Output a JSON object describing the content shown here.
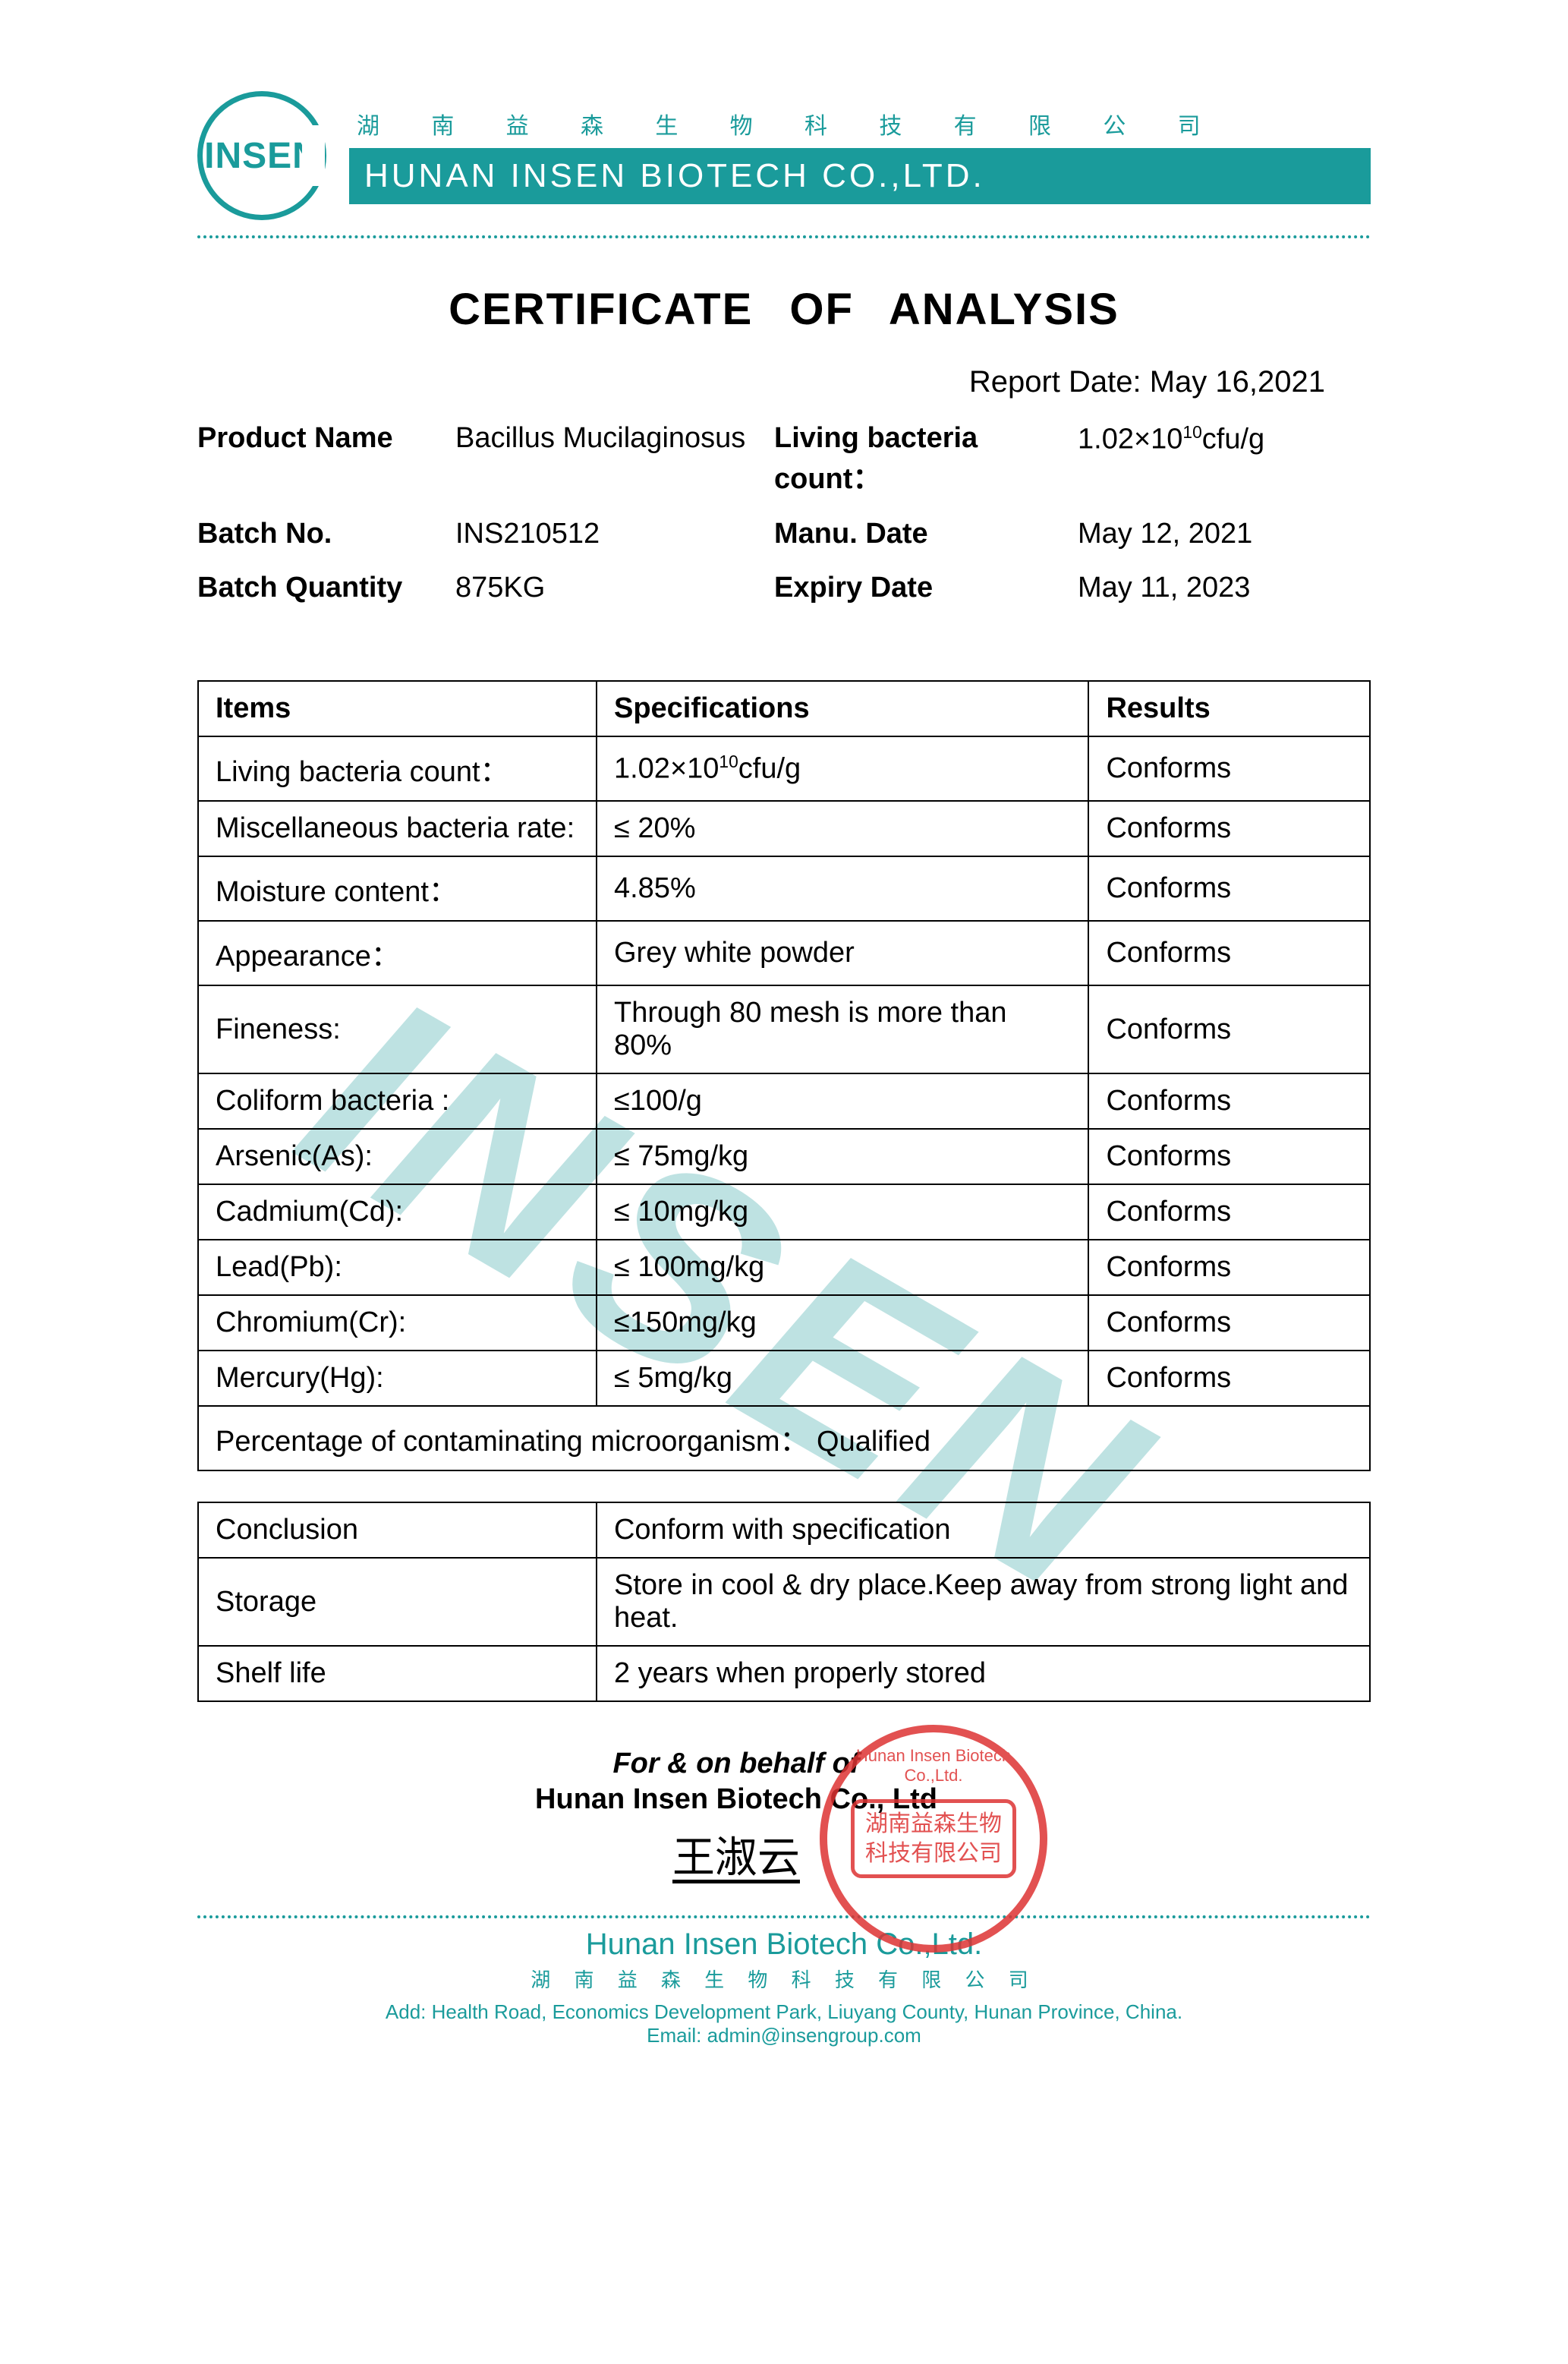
{
  "brand": {
    "logo_text": "INSEN",
    "cn_top": "湖 南 益 森 生 物 科 技 有 限 公 司",
    "company_bar": "HUNAN INSEN BIOTECH CO.,LTD.",
    "accent_color": "#1a9b9b"
  },
  "title": "CERTIFICATE   OF   ANALYSIS",
  "report_date_label": "Report Date:",
  "report_date": "May 16,2021",
  "info": {
    "product_name_label": "Product Name",
    "product_name": "Bacillus Mucilaginosus",
    "living_label": "Living bacteria count：",
    "living_value_prefix": "1.02×10",
    "living_value_exp": "10",
    "living_value_suffix": "cfu/g",
    "batch_no_label": "Batch No.",
    "batch_no": "INS210512",
    "manu_date_label": "Manu. Date",
    "manu_date": "May 12, 2021",
    "batch_qty_label": "Batch Quantity",
    "batch_qty": "875KG",
    "expiry_label": "Expiry Date",
    "expiry": "May 11, 2023"
  },
  "table": {
    "headers": {
      "items": "Items",
      "spec": "Specifications",
      "results": "Results"
    },
    "rows": [
      {
        "item": "Living bacteria count：",
        "spec_prefix": "1.02×10",
        "spec_exp": "10",
        "spec_suffix": "cfu/g",
        "result": "Conforms"
      },
      {
        "item": "Miscellaneous bacteria rate:",
        "spec": "≤ 20%",
        "result": "Conforms"
      },
      {
        "item": "Moisture content：",
        "spec": "4.85%",
        "result": "Conforms"
      },
      {
        "item": "Appearance：",
        "spec": "Grey white powder",
        "result": "Conforms"
      },
      {
        "item": "Fineness:",
        "spec": "Through 80 mesh is more than 80%",
        "result": "Conforms"
      },
      {
        "item": "Coliform bacteria :",
        "spec": "≤100/g",
        "result": "Conforms"
      },
      {
        "item": "Arsenic(As):",
        "spec": "≤ 75mg/kg",
        "result": "Conforms"
      },
      {
        "item": "Cadmium(Cd):",
        "spec": "≤ 10mg/kg",
        "result": "Conforms"
      },
      {
        "item": "Lead(Pb):",
        "spec": "≤ 100mg/kg",
        "result": "Conforms"
      },
      {
        "item": "Chromium(Cr):",
        "spec": "≤150mg/kg",
        "result": "Conforms"
      },
      {
        "item": "Mercury(Hg):",
        "spec": "≤ 5mg/kg",
        "result": "Conforms"
      }
    ],
    "full_row": "Percentage of contaminating microorganism：     Qualified"
  },
  "footer_table": {
    "rows": [
      {
        "label": "Conclusion",
        "value": "Conform with specification"
      },
      {
        "label": "Storage",
        "value": "Store in cool & dry place.Keep away from strong light and heat."
      },
      {
        "label": "Shelf life",
        "value": "2 years when properly stored"
      }
    ]
  },
  "signature": {
    "behalf": "For & on behalf of",
    "company": "Hunan Insen Biotech Co., Ltd",
    "name": "王淑云",
    "stamp_line1": "湖南益森生物",
    "stamp_line2": "科技有限公司",
    "stamp_arc": "Hunan Insen Biotech Co.,Ltd."
  },
  "footer": {
    "company": "Hunan Insen Biotech Co.,Ltd.",
    "cn": "湖 南 益 森 生 物 科 技 有 限 公 司",
    "addr": "Add: Health Road, Economics Development Park, Liuyang County, Hunan Province, China.",
    "email": "Email: admin@insengroup.com"
  },
  "watermark": "INSEN"
}
